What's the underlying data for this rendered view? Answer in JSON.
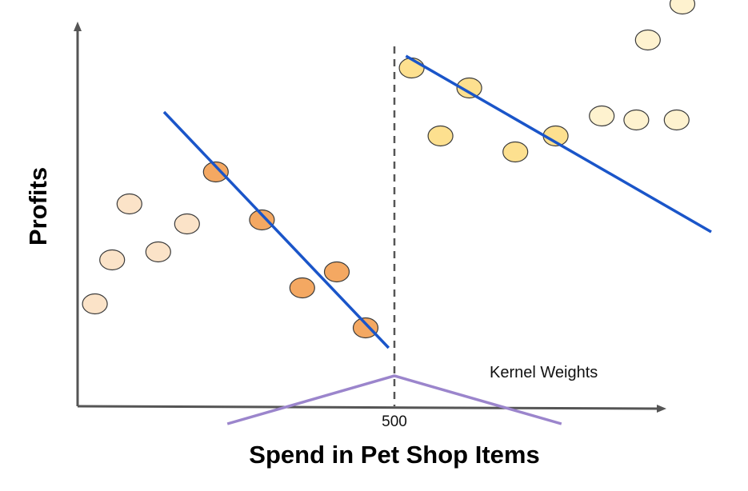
{
  "chart_data": {
    "type": "scatter",
    "title": "",
    "xlabel": "Spend in Pet Shop Items",
    "ylabel": "Profits",
    "x_tick_label": "500",
    "annotation": "Kernel Weights",
    "colors": {
      "left_far": "#fbe3c8",
      "left_near": "#f4a862",
      "right_near": "#fde08f",
      "right_far": "#fef2cf",
      "fit_line": "#1a55c9",
      "kernel": "#9b85cc",
      "axis": "#555555",
      "cutoff": "#555555"
    },
    "points": [
      {
        "x": 0.03,
        "y": 0.04,
        "group": "left_far"
      },
      {
        "x": 0.06,
        "y": 0.15,
        "group": "left_far"
      },
      {
        "x": 0.09,
        "y": 0.29,
        "group": "left_far"
      },
      {
        "x": 0.14,
        "y": 0.17,
        "group": "left_far"
      },
      {
        "x": 0.19,
        "y": 0.24,
        "group": "left_far"
      },
      {
        "x": 0.24,
        "y": 0.37,
        "group": "left_near"
      },
      {
        "x": 0.32,
        "y": 0.25,
        "group": "left_near"
      },
      {
        "x": 0.39,
        "y": 0.08,
        "group": "left_near"
      },
      {
        "x": 0.45,
        "y": 0.12,
        "group": "left_near"
      },
      {
        "x": 0.5,
        "y": -0.02,
        "group": "left_near"
      },
      {
        "x": 0.58,
        "y": 0.63,
        "group": "right_near"
      },
      {
        "x": 0.63,
        "y": 0.46,
        "group": "right_near"
      },
      {
        "x": 0.68,
        "y": 0.58,
        "group": "right_near"
      },
      {
        "x": 0.76,
        "y": 0.42,
        "group": "right_near"
      },
      {
        "x": 0.83,
        "y": 0.46,
        "group": "right_near"
      },
      {
        "x": 0.91,
        "y": 0.51,
        "group": "right_far"
      },
      {
        "x": 0.97,
        "y": 0.5,
        "group": "right_far"
      },
      {
        "x": 0.99,
        "y": 0.7,
        "group": "right_far"
      },
      {
        "x": 1.04,
        "y": 0.5,
        "group": "right_far"
      },
      {
        "x": 1.05,
        "y": 0.79,
        "group": "right_far"
      }
    ],
    "fit_left": {
      "x": [
        0.15,
        0.54
      ],
      "y": [
        0.52,
        -0.07
      ]
    },
    "fit_right": {
      "x": [
        0.57,
        1.1
      ],
      "y": [
        0.66,
        0.22
      ]
    },
    "kernel": {
      "x": [
        0.26,
        0.55,
        0.84
      ],
      "y": [
        -0.26,
        -0.14,
        -0.26
      ]
    },
    "cutoff_x": 0.55
  }
}
